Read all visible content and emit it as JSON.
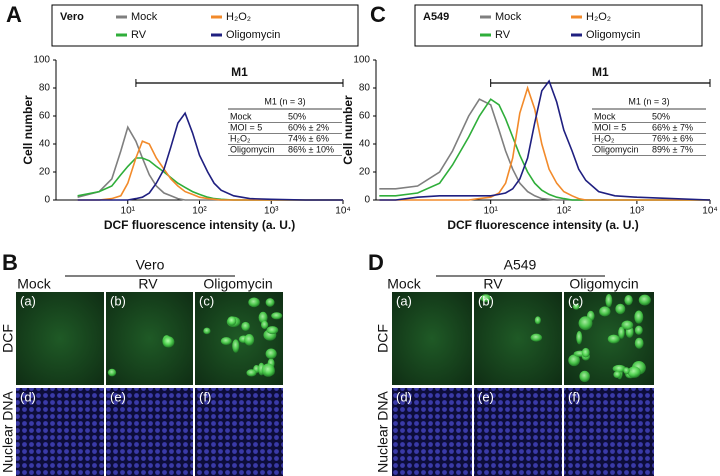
{
  "chart_data": [
    {
      "type": "line",
      "panel_label": "A",
      "legend_title": "Vero",
      "ylabel": "Cell number",
      "xlabel": "DCF fluorescence intensity (a. U.)",
      "x_scale": "log",
      "xlim": [
        1,
        10000
      ],
      "ylim": [
        0,
        100
      ],
      "xticks": [
        {
          "value": 10,
          "label": "10¹"
        },
        {
          "value": 100,
          "label": "10²"
        },
        {
          "value": 1000,
          "label": "10³"
        },
        {
          "value": 10000,
          "label": "10⁴"
        }
      ],
      "yticks": [
        0,
        20,
        40,
        60,
        80,
        100
      ],
      "gate": {
        "label": "M1",
        "range": [
          13,
          10000
        ]
      },
      "x": [
        2,
        4,
        6,
        8,
        10,
        13,
        16,
        20,
        25,
        32,
        40,
        50,
        63,
        80,
        100,
        130,
        160,
        200,
        300,
        500,
        1000,
        3000,
        10000
      ],
      "series": [
        {
          "name": "Mock",
          "color": "#7f7f7f",
          "values": [
            2,
            6,
            15,
            35,
            52,
            42,
            30,
            18,
            10,
            5,
            3,
            1,
            0,
            0,
            0,
            0,
            0,
            0,
            0,
            0,
            0,
            0,
            0
          ]
        },
        {
          "name": "RV",
          "color": "#2fae3a",
          "values": [
            3,
            6,
            10,
            18,
            24,
            30,
            30,
            28,
            24,
            20,
            16,
            12,
            9,
            6,
            4,
            2,
            1,
            0.5,
            0,
            0,
            0,
            0,
            0
          ]
        },
        {
          "name": "H₂O₂",
          "color": "#f28a2a",
          "values": [
            0,
            0,
            1,
            3,
            12,
            30,
            42,
            40,
            30,
            22,
            15,
            10,
            6,
            4,
            2,
            1,
            0.5,
            0,
            0,
            0,
            0,
            0,
            0
          ]
        },
        {
          "name": "Oligomycin",
          "color": "#1f1f80",
          "values": [
            0,
            0,
            0,
            0,
            0,
            1,
            2,
            5,
            12,
            22,
            38,
            55,
            62,
            48,
            32,
            20,
            12,
            7,
            3,
            1,
            0.5,
            0,
            0
          ]
        }
      ],
      "inset_table": {
        "title": "M1 (n = 3)",
        "rows": [
          [
            "Mock",
            "50%"
          ],
          [
            "MOI = 5",
            "60% ± 2%"
          ],
          [
            "H₂O₂",
            "74% ± 6%"
          ],
          [
            "Oligomycin",
            "86% ± 10%"
          ]
        ]
      }
    },
    {
      "type": "line",
      "panel_label": "C",
      "legend_title": "A549",
      "ylabel": "Cell number",
      "xlabel": "DCF fluorescence intensity (a. U.)",
      "x_scale": "log",
      "xlim": [
        0.27,
        10000
      ],
      "ylim": [
        0,
        100
      ],
      "xticks": [
        {
          "value": 10,
          "label": "10¹"
        },
        {
          "value": 100,
          "label": "10²"
        },
        {
          "value": 1000,
          "label": "10³"
        },
        {
          "value": 10000,
          "label": "10⁴"
        }
      ],
      "yticks": [
        0,
        20,
        40,
        60,
        80,
        100
      ],
      "gate": {
        "label": "M1",
        "range": [
          10,
          10000
        ]
      },
      "x": [
        0.3,
        0.5,
        1,
        2,
        3,
        5,
        7,
        10,
        13,
        16,
        20,
        25,
        32,
        40,
        50,
        63,
        80,
        100,
        130,
        160,
        200,
        300,
        500,
        1000,
        3000,
        10000
      ],
      "series": [
        {
          "name": "Mock",
          "color": "#7f7f7f",
          "values": [
            8,
            8,
            10,
            20,
            35,
            60,
            72,
            68,
            50,
            35,
            22,
            12,
            6,
            3,
            1,
            0.5,
            0,
            0,
            0,
            0,
            0,
            0,
            0,
            0,
            0,
            0
          ]
        },
        {
          "name": "RV",
          "color": "#2fae3a",
          "values": [
            3,
            3,
            5,
            12,
            25,
            45,
            60,
            72,
            68,
            58,
            45,
            32,
            20,
            12,
            7,
            4,
            2,
            1,
            0,
            0,
            0,
            0,
            0,
            0,
            0,
            0
          ]
        },
        {
          "name": "H₂O₂",
          "color": "#f28a2a",
          "values": [
            0,
            0,
            0,
            0,
            0,
            0,
            1,
            2,
            5,
            12,
            30,
            62,
            80,
            65,
            40,
            22,
            12,
            6,
            3,
            1,
            0,
            0,
            0,
            0,
            0,
            0
          ]
        },
        {
          "name": "Oligomycin",
          "color": "#1f1f80",
          "values": [
            0,
            0,
            2,
            3,
            3,
            3,
            3,
            3,
            4,
            5,
            8,
            15,
            30,
            55,
            78,
            85,
            70,
            50,
            35,
            22,
            14,
            6,
            3,
            2,
            1,
            0
          ]
        }
      ],
      "inset_table": {
        "title": "M1 (n = 3)",
        "rows": [
          [
            "Mock",
            "50%"
          ],
          [
            "MOI = 5",
            "66% ± 7%"
          ],
          [
            "H₂O₂",
            "76% ± 6%"
          ],
          [
            "Oligomycin",
            "89% ± 7%"
          ]
        ]
      }
    }
  ],
  "image_panels": [
    {
      "panel_label": "B",
      "title": "Vero",
      "columns": [
        "Mock",
        "RV",
        "Oligomycin"
      ],
      "rows": [
        "DCF",
        "Nuclear DNA"
      ],
      "cells": [
        [
          "(a)",
          "(b)",
          "(c)"
        ],
        [
          "(d)",
          "(e)",
          "(f)"
        ]
      ]
    },
    {
      "panel_label": "D",
      "title": "A549",
      "columns": [
        "Mock",
        "RV",
        "Oligomycin"
      ],
      "rows": [
        "DCF",
        "Nuclear DNA"
      ],
      "cells": [
        [
          "(a)",
          "(b)",
          "(c)"
        ],
        [
          "(d)",
          "(e)",
          "(f)"
        ]
      ]
    }
  ]
}
